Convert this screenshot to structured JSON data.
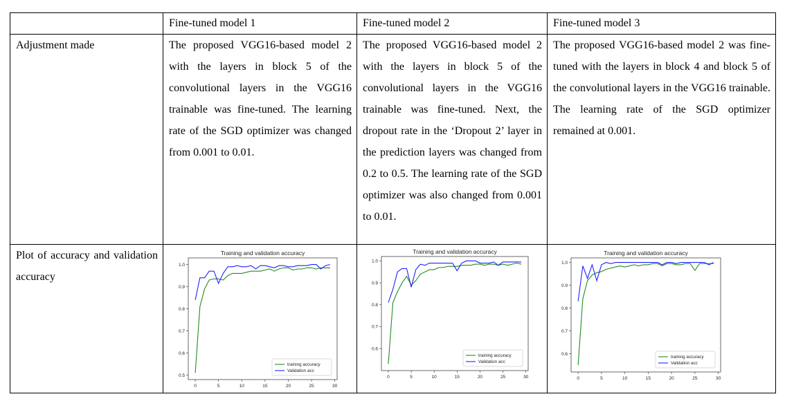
{
  "table": {
    "header": [
      "",
      "Fine-tuned model 1",
      "Fine-tuned model 2",
      "Fine-tuned model 3"
    ],
    "row_adjustment": {
      "label": "Adjustment made",
      "cells": [
        "The proposed VGG16-based model 2 with the layers in block 5 of the convolutional layers in the VGG16 trainable was fine-tuned. The learning rate of the SGD optimizer was changed from 0.001 to 0.01.",
        "The proposed VGG16-based model 2 with the layers in block 5 of the convolutional layers in the VGG16 trainable was fine-tuned. Next, the dropout rate in the ‘Dropout 2’ layer in the prediction layers was changed from 0.2 to 0.5.  The learning rate of the SGD optimizer was also changed from 0.001 to 0.01.",
        "The proposed VGG16-based model 2 was fine-tuned with the layers in block 4 and block 5 of the convolutional layers in the VGG16 trainable. The learning rate of the SGD optimizer remained at 0.001."
      ]
    },
    "row_plot": {
      "label": "Plot of accuracy and validation accuracy"
    }
  },
  "chart_data": [
    {
      "type": "line",
      "title": "Training and validation accuracy",
      "xlabel": "",
      "ylabel": "",
      "xlim": [
        -1.5,
        30.5
      ],
      "ylim": [
        0.48,
        1.03
      ],
      "xticks": [
        0,
        5,
        10,
        15,
        20,
        25,
        30
      ],
      "yticks": [
        0.5,
        0.6,
        0.7,
        0.8,
        0.9,
        1.0
      ],
      "legend_position": "lower-right",
      "x": [
        0,
        1,
        2,
        3,
        4,
        5,
        6,
        7,
        8,
        9,
        10,
        11,
        12,
        13,
        14,
        15,
        16,
        17,
        18,
        19,
        20,
        21,
        22,
        23,
        24,
        25,
        26,
        27,
        28,
        29
      ],
      "series": [
        {
          "name": "training accuracy",
          "color": "#228b22",
          "values": [
            0.51,
            0.81,
            0.89,
            0.93,
            0.935,
            0.935,
            0.93,
            0.95,
            0.96,
            0.96,
            0.96,
            0.965,
            0.97,
            0.97,
            0.97,
            0.975,
            0.98,
            0.97,
            0.98,
            0.985,
            0.985,
            0.975,
            0.98,
            0.98,
            0.985,
            0.985,
            0.98,
            0.985,
            0.985,
            0.985
          ]
        },
        {
          "name": "Validation acc",
          "color": "#1f1fff",
          "values": [
            0.84,
            0.94,
            0.94,
            0.97,
            0.97,
            0.915,
            0.96,
            0.99,
            0.99,
            0.995,
            0.99,
            0.99,
            0.995,
            0.98,
            0.995,
            0.995,
            0.99,
            0.985,
            0.995,
            0.995,
            0.99,
            0.99,
            0.995,
            0.995,
            0.995,
            1.0,
            1.0,
            0.98,
            0.995,
            1.0
          ]
        }
      ]
    },
    {
      "type": "line",
      "title": "Training and validation accuracy",
      "xlabel": "",
      "ylabel": "",
      "xlim": [
        -1.5,
        30.5
      ],
      "ylim": [
        0.5,
        1.02
      ],
      "xticks": [
        0,
        5,
        10,
        15,
        20,
        25,
        30
      ],
      "yticks": [
        0.6,
        0.7,
        0.8,
        0.9,
        1.0
      ],
      "legend_position": "lower-right",
      "x": [
        0,
        1,
        2,
        3,
        4,
        5,
        6,
        7,
        8,
        9,
        10,
        11,
        12,
        13,
        14,
        15,
        16,
        17,
        18,
        19,
        20,
        21,
        22,
        23,
        24,
        25,
        26,
        27,
        28,
        29
      ],
      "series": [
        {
          "name": "training accuracy",
          "color": "#228b22",
          "values": [
            0.53,
            0.81,
            0.86,
            0.9,
            0.93,
            0.89,
            0.91,
            0.94,
            0.95,
            0.96,
            0.96,
            0.97,
            0.97,
            0.975,
            0.975,
            0.975,
            0.98,
            0.98,
            0.98,
            0.985,
            0.985,
            0.98,
            0.985,
            0.985,
            0.98,
            0.985,
            0.98,
            0.985,
            0.99,
            0.985
          ]
        },
        {
          "name": "Validation acc",
          "color": "#1f1fff",
          "values": [
            0.81,
            0.87,
            0.95,
            0.965,
            0.965,
            0.88,
            0.96,
            0.985,
            0.98,
            0.99,
            0.99,
            0.99,
            0.99,
            0.99,
            0.99,
            0.955,
            0.99,
            1.0,
            1.0,
            1.0,
            0.99,
            0.99,
            0.99,
            0.995,
            0.98,
            0.995,
            0.995,
            0.995,
            0.995,
            0.995
          ]
        }
      ]
    },
    {
      "type": "line",
      "title": "Training and validation accuracy",
      "xlabel": "",
      "ylabel": "",
      "xlim": [
        -1.5,
        30.5
      ],
      "ylim": [
        0.52,
        1.02
      ],
      "xticks": [
        0,
        5,
        10,
        15,
        20,
        25,
        30
      ],
      "yticks": [
        0.6,
        0.7,
        0.8,
        0.9,
        1.0
      ],
      "legend_position": "lower-right",
      "x": [
        0,
        1,
        2,
        3,
        4,
        5,
        6,
        7,
        8,
        9,
        10,
        11,
        12,
        13,
        14,
        15,
        16,
        17,
        18,
        19,
        20,
        21,
        22,
        23,
        24,
        25,
        26,
        27,
        28,
        29
      ],
      "series": [
        {
          "name": "training accuracy",
          "color": "#228b22",
          "values": [
            0.55,
            0.84,
            0.92,
            0.945,
            0.955,
            0.96,
            0.97,
            0.975,
            0.98,
            0.985,
            0.98,
            0.985,
            0.99,
            0.985,
            0.99,
            0.99,
            0.995,
            0.995,
            0.985,
            0.995,
            0.995,
            0.99,
            0.99,
            0.995,
            0.995,
            0.965,
            0.995,
            0.995,
            0.995,
            0.995
          ]
        },
        {
          "name": "Validation acc",
          "color": "#1f1fff",
          "values": [
            0.83,
            0.985,
            0.93,
            0.99,
            0.92,
            0.99,
            1.0,
            0.995,
            1.0,
            1.0,
            1.0,
            1.0,
            1.0,
            1.0,
            1.0,
            1.0,
            1.0,
            1.0,
            0.99,
            1.0,
            1.0,
            0.995,
            1.0,
            1.0,
            1.0,
            1.0,
            1.0,
            1.0,
            0.99,
            1.0
          ]
        }
      ]
    }
  ]
}
